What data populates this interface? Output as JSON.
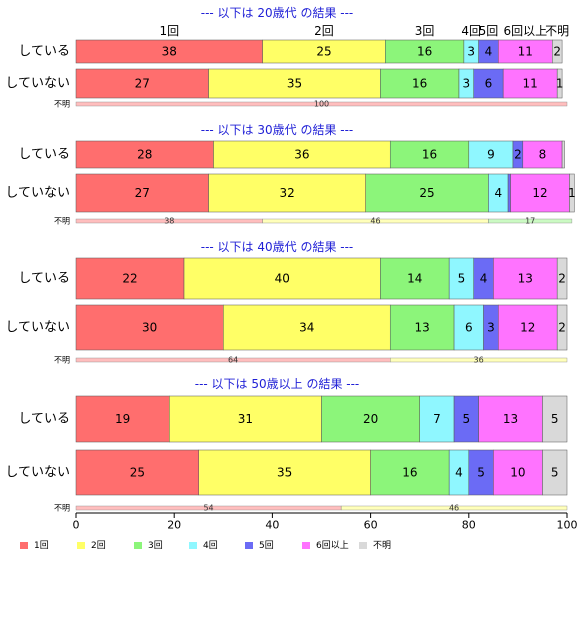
{
  "chart_data": {
    "type": "bar",
    "orientation": "horizontal",
    "stacked": true,
    "xlim": [
      0,
      100
    ],
    "x_ticks": [
      "0",
      "20",
      "40",
      "60",
      "80",
      "100"
    ],
    "categories": [
      "1回",
      "2回",
      "3回",
      "4回",
      "5回",
      "6回以上",
      "不明"
    ],
    "colors": [
      "#ff6e6e",
      "#ffff66",
      "#8cf57a",
      "#8ff7ff",
      "#6b6bf5",
      "#ff73ff",
      "#d9d9d9"
    ],
    "legend": {
      "position": "bottom",
      "entries": [
        "1回",
        "2回",
        "3回",
        "4回",
        "5回",
        "6回以上",
        "不明"
      ]
    },
    "top_labels": [
      "1回",
      "2回",
      "3回",
      "4回",
      "5回",
      "6回以上",
      "不明"
    ],
    "panels": [
      {
        "title": "--- 以下は 20歳代 の結果 ---",
        "rows": [
          {
            "label": "している",
            "values": [
              38,
              25,
              16,
              3,
              4,
              11,
              2
            ]
          },
          {
            "label": "していない",
            "values": [
              27,
              35,
              16,
              3,
              6,
              11,
              1
            ]
          }
        ],
        "unknown": {
          "label": "不明",
          "values": [
            100,
            0,
            0,
            0,
            0,
            0,
            0
          ]
        }
      },
      {
        "title": "--- 以下は 30歳代 の結果 ---",
        "rows": [
          {
            "label": "している",
            "values": [
              28,
              36,
              16,
              9,
              2,
              8,
              0.5
            ]
          },
          {
            "label": "していない",
            "values": [
              27,
              32,
              25,
              4,
              0.5,
              12,
              1
            ]
          }
        ],
        "unknown": {
          "label": "不明",
          "values": [
            38,
            46,
            17,
            0,
            0,
            0,
            0
          ]
        }
      },
      {
        "title": "--- 以下は 40歳代 の結果 ---",
        "rows": [
          {
            "label": "している",
            "values": [
              22,
              40,
              14,
              5,
              4,
              13,
              2
            ]
          },
          {
            "label": "していない",
            "values": [
              30,
              34,
              13,
              6,
              3,
              12,
              2
            ]
          }
        ],
        "unknown": {
          "label": "不明",
          "values": [
            64,
            36,
            0,
            0,
            0,
            0,
            0
          ]
        }
      },
      {
        "title": "--- 以下は 50歳以上 の結果 ---",
        "rows": [
          {
            "label": "している",
            "values": [
              19,
              31,
              20,
              7,
              5,
              13,
              5
            ]
          },
          {
            "label": "していない",
            "values": [
              25,
              35,
              16,
              4,
              5,
              10,
              5
            ]
          }
        ],
        "unknown": {
          "label": "不明",
          "values": [
            54,
            46,
            0,
            0,
            0,
            0,
            0
          ]
        }
      }
    ]
  }
}
